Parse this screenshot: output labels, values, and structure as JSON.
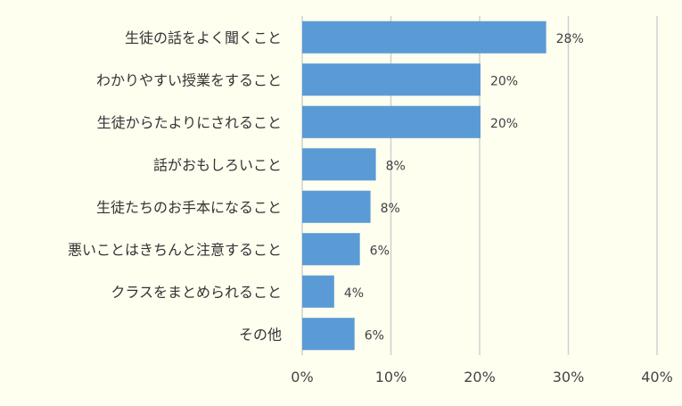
{
  "chart_data": {
    "type": "bar",
    "orientation": "horizontal",
    "categories": [
      "生徒の話をよく聞くこと",
      "わかりやすい授業をすること",
      "生徒からたよりにされること",
      "話がおもしろいこと",
      "生徒たちのお手本になること",
      "悪いことはきちんと注意すること",
      "クラスをまとめられること",
      "その他"
    ],
    "values": [
      27.5,
      20.1,
      20.1,
      8.3,
      7.7,
      6.5,
      3.6,
      5.9
    ],
    "data_labels": [
      "28%",
      "20%",
      "20%",
      "8%",
      "8%",
      "6%",
      "4%",
      "6%"
    ],
    "xlim": [
      0,
      40
    ],
    "x_ticks": [
      0,
      10,
      20,
      30,
      40
    ],
    "x_tick_labels": [
      "0%",
      "10%",
      "20%",
      "30%",
      "40%"
    ],
    "title": "",
    "xlabel": "",
    "ylabel": "",
    "grid": "vertical",
    "legend": "none",
    "bar_color": "#5b9bd5",
    "grid_color": "#d0d0d0",
    "background_color": "#fffff0"
  }
}
